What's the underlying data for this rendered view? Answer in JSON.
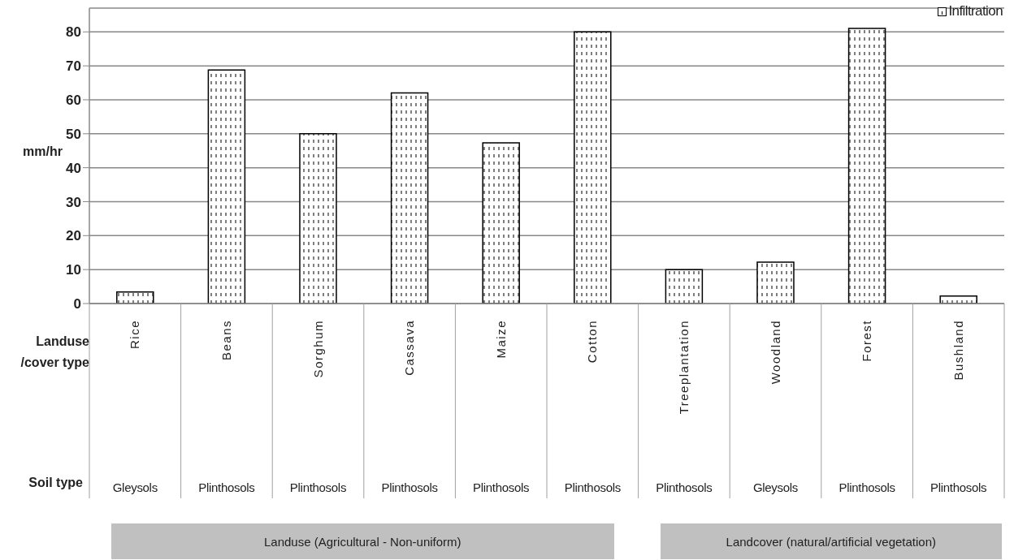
{
  "chart_data": {
    "type": "bar",
    "ylabel": "mm/hr",
    "xlabel": "Landuse /cover type",
    "categories": [
      "Rice",
      "Beans",
      "Sorghum",
      "Cassava",
      "Maize",
      "Cotton",
      "Treeplantation",
      "Woodland",
      "Forest",
      "Bushland"
    ],
    "series": [
      {
        "name": "Infiltration",
        "color": "#000000",
        "values": [
          3.4,
          68.8,
          50,
          62,
          47.3,
          80,
          10,
          12.2,
          81,
          2.2
        ]
      }
    ],
    "ylim": [
      0,
      87
    ],
    "yticks": [
      0,
      10,
      20,
      30,
      40,
      50,
      60,
      70,
      80
    ],
    "grid": "y",
    "legend": "top right",
    "annotations": [
      "Soil type",
      "Gleysols",
      "Plinthosols",
      "Plinthosols",
      "Plinthosols",
      "Plinthosols",
      "Plinthosols",
      "Plinthosols",
      "Gleysols",
      "Plinthosols",
      "Plinthosols",
      "Landuse (Agricultural - Non-uniform)",
      "Landcover (natural/artificial vegetation)"
    ]
  }
}
